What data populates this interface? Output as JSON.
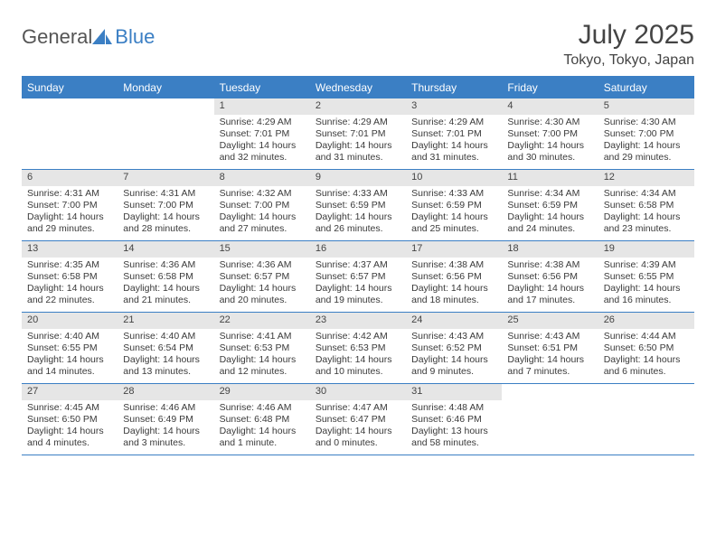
{
  "brand": {
    "part1": "General",
    "part2": "Blue"
  },
  "title": "July 2025",
  "location": "Tokyo, Tokyo, Japan",
  "colors": {
    "accent": "#3b7fc4",
    "dow_bg": "#3b7fc4",
    "dow_fg": "#ffffff",
    "daynum_bg": "#e6e6e6",
    "text": "#333333"
  },
  "days_of_week": [
    "Sunday",
    "Monday",
    "Tuesday",
    "Wednesday",
    "Thursday",
    "Friday",
    "Saturday"
  ],
  "weeks": [
    [
      {
        "n": "",
        "sr": "",
        "ss": "",
        "dl": ""
      },
      {
        "n": "",
        "sr": "",
        "ss": "",
        "dl": ""
      },
      {
        "n": "1",
        "sr": "Sunrise: 4:29 AM",
        "ss": "Sunset: 7:01 PM",
        "dl": "Daylight: 14 hours and 32 minutes."
      },
      {
        "n": "2",
        "sr": "Sunrise: 4:29 AM",
        "ss": "Sunset: 7:01 PM",
        "dl": "Daylight: 14 hours and 31 minutes."
      },
      {
        "n": "3",
        "sr": "Sunrise: 4:29 AM",
        "ss": "Sunset: 7:01 PM",
        "dl": "Daylight: 14 hours and 31 minutes."
      },
      {
        "n": "4",
        "sr": "Sunrise: 4:30 AM",
        "ss": "Sunset: 7:00 PM",
        "dl": "Daylight: 14 hours and 30 minutes."
      },
      {
        "n": "5",
        "sr": "Sunrise: 4:30 AM",
        "ss": "Sunset: 7:00 PM",
        "dl": "Daylight: 14 hours and 29 minutes."
      }
    ],
    [
      {
        "n": "6",
        "sr": "Sunrise: 4:31 AM",
        "ss": "Sunset: 7:00 PM",
        "dl": "Daylight: 14 hours and 29 minutes."
      },
      {
        "n": "7",
        "sr": "Sunrise: 4:31 AM",
        "ss": "Sunset: 7:00 PM",
        "dl": "Daylight: 14 hours and 28 minutes."
      },
      {
        "n": "8",
        "sr": "Sunrise: 4:32 AM",
        "ss": "Sunset: 7:00 PM",
        "dl": "Daylight: 14 hours and 27 minutes."
      },
      {
        "n": "9",
        "sr": "Sunrise: 4:33 AM",
        "ss": "Sunset: 6:59 PM",
        "dl": "Daylight: 14 hours and 26 minutes."
      },
      {
        "n": "10",
        "sr": "Sunrise: 4:33 AM",
        "ss": "Sunset: 6:59 PM",
        "dl": "Daylight: 14 hours and 25 minutes."
      },
      {
        "n": "11",
        "sr": "Sunrise: 4:34 AM",
        "ss": "Sunset: 6:59 PM",
        "dl": "Daylight: 14 hours and 24 minutes."
      },
      {
        "n": "12",
        "sr": "Sunrise: 4:34 AM",
        "ss": "Sunset: 6:58 PM",
        "dl": "Daylight: 14 hours and 23 minutes."
      }
    ],
    [
      {
        "n": "13",
        "sr": "Sunrise: 4:35 AM",
        "ss": "Sunset: 6:58 PM",
        "dl": "Daylight: 14 hours and 22 minutes."
      },
      {
        "n": "14",
        "sr": "Sunrise: 4:36 AM",
        "ss": "Sunset: 6:58 PM",
        "dl": "Daylight: 14 hours and 21 minutes."
      },
      {
        "n": "15",
        "sr": "Sunrise: 4:36 AM",
        "ss": "Sunset: 6:57 PM",
        "dl": "Daylight: 14 hours and 20 minutes."
      },
      {
        "n": "16",
        "sr": "Sunrise: 4:37 AM",
        "ss": "Sunset: 6:57 PM",
        "dl": "Daylight: 14 hours and 19 minutes."
      },
      {
        "n": "17",
        "sr": "Sunrise: 4:38 AM",
        "ss": "Sunset: 6:56 PM",
        "dl": "Daylight: 14 hours and 18 minutes."
      },
      {
        "n": "18",
        "sr": "Sunrise: 4:38 AM",
        "ss": "Sunset: 6:56 PM",
        "dl": "Daylight: 14 hours and 17 minutes."
      },
      {
        "n": "19",
        "sr": "Sunrise: 4:39 AM",
        "ss": "Sunset: 6:55 PM",
        "dl": "Daylight: 14 hours and 16 minutes."
      }
    ],
    [
      {
        "n": "20",
        "sr": "Sunrise: 4:40 AM",
        "ss": "Sunset: 6:55 PM",
        "dl": "Daylight: 14 hours and 14 minutes."
      },
      {
        "n": "21",
        "sr": "Sunrise: 4:40 AM",
        "ss": "Sunset: 6:54 PM",
        "dl": "Daylight: 14 hours and 13 minutes."
      },
      {
        "n": "22",
        "sr": "Sunrise: 4:41 AM",
        "ss": "Sunset: 6:53 PM",
        "dl": "Daylight: 14 hours and 12 minutes."
      },
      {
        "n": "23",
        "sr": "Sunrise: 4:42 AM",
        "ss": "Sunset: 6:53 PM",
        "dl": "Daylight: 14 hours and 10 minutes."
      },
      {
        "n": "24",
        "sr": "Sunrise: 4:43 AM",
        "ss": "Sunset: 6:52 PM",
        "dl": "Daylight: 14 hours and 9 minutes."
      },
      {
        "n": "25",
        "sr": "Sunrise: 4:43 AM",
        "ss": "Sunset: 6:51 PM",
        "dl": "Daylight: 14 hours and 7 minutes."
      },
      {
        "n": "26",
        "sr": "Sunrise: 4:44 AM",
        "ss": "Sunset: 6:50 PM",
        "dl": "Daylight: 14 hours and 6 minutes."
      }
    ],
    [
      {
        "n": "27",
        "sr": "Sunrise: 4:45 AM",
        "ss": "Sunset: 6:50 PM",
        "dl": "Daylight: 14 hours and 4 minutes."
      },
      {
        "n": "28",
        "sr": "Sunrise: 4:46 AM",
        "ss": "Sunset: 6:49 PM",
        "dl": "Daylight: 14 hours and 3 minutes."
      },
      {
        "n": "29",
        "sr": "Sunrise: 4:46 AM",
        "ss": "Sunset: 6:48 PM",
        "dl": "Daylight: 14 hours and 1 minute."
      },
      {
        "n": "30",
        "sr": "Sunrise: 4:47 AM",
        "ss": "Sunset: 6:47 PM",
        "dl": "Daylight: 14 hours and 0 minutes."
      },
      {
        "n": "31",
        "sr": "Sunrise: 4:48 AM",
        "ss": "Sunset: 6:46 PM",
        "dl": "Daylight: 13 hours and 58 minutes."
      },
      {
        "n": "",
        "sr": "",
        "ss": "",
        "dl": ""
      },
      {
        "n": "",
        "sr": "",
        "ss": "",
        "dl": ""
      }
    ]
  ]
}
